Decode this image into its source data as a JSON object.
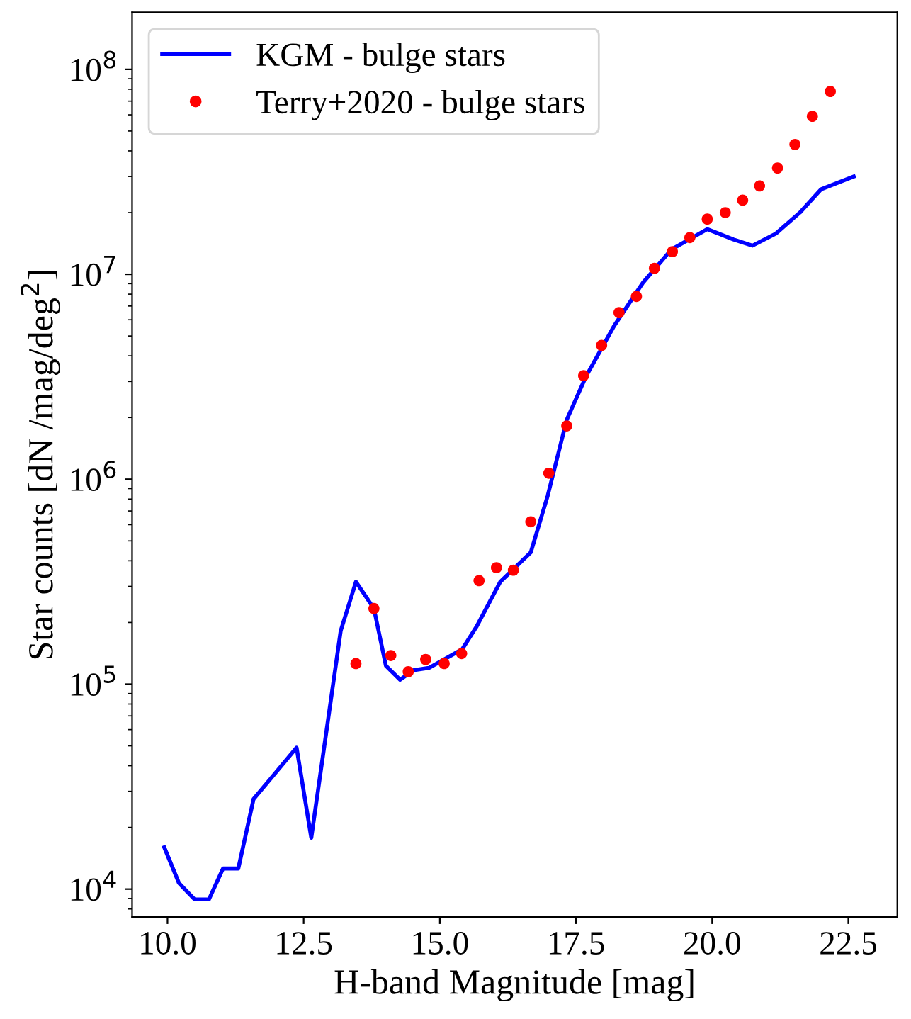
{
  "chart_data": {
    "type": "line",
    "xlabel": "H-band Magnitude [mag]",
    "ylabel": "Star counts [dN /mag/deg$^{2}$]",
    "log": "y",
    "legend": "top left",
    "grid": false,
    "xlim": [
      9.35,
      23.4
    ],
    "ylim": [
      7300,
      190000000
    ],
    "xticks": [
      {
        "value": 10,
        "label": "10.0"
      },
      {
        "value": 12.5,
        "label": "12.5"
      },
      {
        "value": 15,
        "label": "15.0"
      },
      {
        "value": 17.5,
        "label": "17.5"
      },
      {
        "value": 20,
        "label": "20.0"
      },
      {
        "value": 22.5,
        "label": "22.5"
      }
    ],
    "yticks": [
      {
        "value": 10000,
        "label": "10$^{4}$"
      },
      {
        "value": 100000,
        "label": "10$^{5}$"
      },
      {
        "value": 1000000,
        "label": "10$^{6}$"
      },
      {
        "value": 10000000,
        "label": "10$^{7}$"
      },
      {
        "value": 100000000,
        "label": "10$^{8}$"
      }
    ],
    "series": [
      {
        "name": "KGM - bulge stars",
        "color": "#0000ff",
        "marker": "none",
        "line_style": "solid",
        "x": [
          9.94,
          10.21,
          10.5,
          10.76,
          11.02,
          11.3,
          11.58,
          11.83,
          12.37,
          12.64,
          13.18,
          13.46,
          13.79,
          14.01,
          14.27,
          14.52,
          14.8,
          15.41,
          15.67,
          16.11,
          16.67,
          16.98,
          17.33,
          17.68,
          18.2,
          18.73,
          19.25,
          19.91,
          20.39,
          20.74,
          21.17,
          21.61,
          22.0,
          22.6
        ],
        "values": [
          16000,
          10700,
          8900,
          8900,
          12600,
          12600,
          27500,
          33000,
          49000,
          17800,
          182000,
          316000,
          234000,
          123000,
          105000,
          117000,
          120000,
          148000,
          190000,
          316000,
          440000,
          830000,
          1950000,
          3160000,
          5600000,
          9100000,
          13200000,
          16600000,
          14800000,
          13800000,
          15800000,
          20000000,
          26000000,
          30000000
        ]
      },
      {
        "name": "Terry+2020 - bulge stars",
        "type": "scatter",
        "color": "#ff0000",
        "marker": "circle",
        "x": [
          13.46,
          13.79,
          14.1,
          14.42,
          14.74,
          15.08,
          15.4,
          15.72,
          16.04,
          16.35,
          16.67,
          17.0,
          17.33,
          17.64,
          17.97,
          18.29,
          18.61,
          18.94,
          19.27,
          19.59,
          19.91,
          20.24,
          20.56,
          20.87,
          21.2,
          21.52,
          21.84,
          22.17
        ],
        "values": [
          126000,
          234000,
          138000,
          115000,
          132000,
          126000,
          141000,
          320000,
          370000,
          360000,
          620000,
          1070000,
          1820000,
          3200000,
          4500000,
          6500000,
          7800000,
          10700000,
          12900000,
          15100000,
          18600000,
          20000000,
          23000000,
          27000000,
          33000000,
          43000000,
          59000000,
          78000000
        ]
      }
    ]
  }
}
